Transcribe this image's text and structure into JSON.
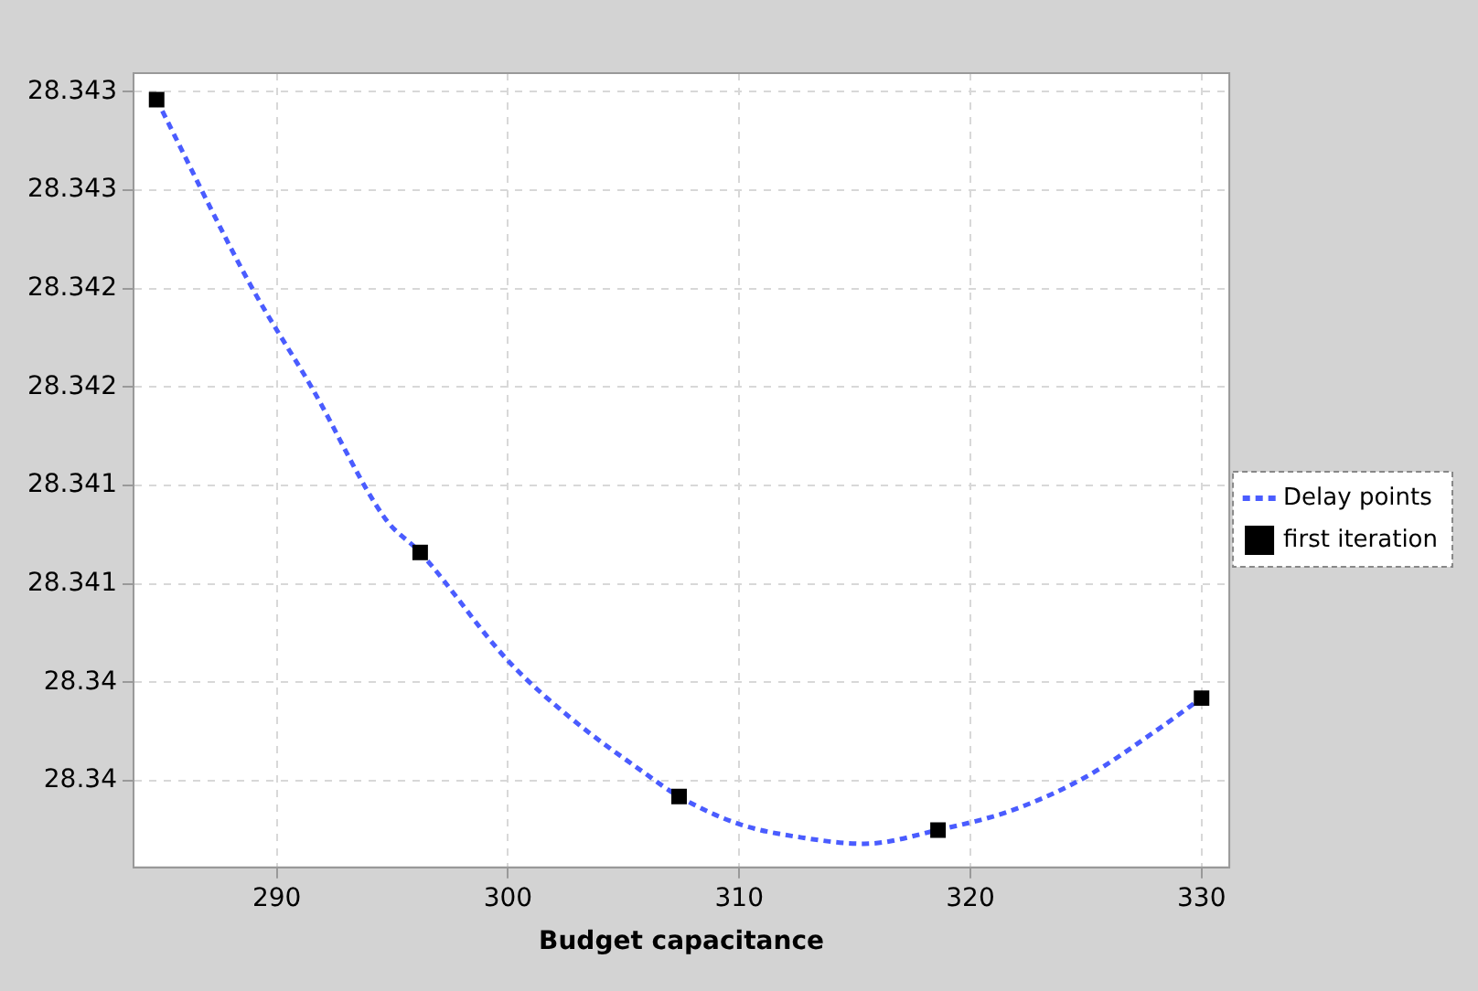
{
  "chart_data": {
    "type": "line",
    "xlabel": "Budget capacitance",
    "xlim": [
      283.8,
      331.2
    ],
    "xticks": [
      290,
      300,
      310,
      320,
      330
    ],
    "ylim": [
      28.33906,
      28.343095
    ],
    "yticks": [
      {
        "value": 28.3395,
        "label": "28.34"
      },
      {
        "value": 28.34,
        "label": "28.34"
      },
      {
        "value": 28.3405,
        "label": "28.341"
      },
      {
        "value": 28.341,
        "label": "28.341"
      },
      {
        "value": 28.3415,
        "label": "28.342"
      },
      {
        "value": 28.342,
        "label": "28.342"
      },
      {
        "value": 28.3425,
        "label": "28.343"
      },
      {
        "value": 28.343,
        "label": "28.343"
      }
    ],
    "grid": true,
    "legend": "right",
    "series": [
      {
        "name": "Delay points",
        "type": "line",
        "color": "#4a5cff",
        "line_style": "dashed",
        "marker": "none",
        "x": [
          284.8,
          288.9,
          291.5,
          294.7,
          296.2,
          300.0,
          302.7,
          305.9,
          307.4,
          310.0,
          312.8,
          315.4,
          318.6,
          321.8,
          325.0,
          328.1,
          330.0
        ],
        "values": [
          28.34296,
          28.34201,
          28.3415,
          28.34083,
          28.34066,
          28.34011,
          28.33982,
          28.33954,
          28.33942,
          28.33928,
          28.33921,
          28.33918,
          28.33925,
          28.33935,
          28.33952,
          28.33976,
          28.33992
        ]
      },
      {
        "name": "first iteration",
        "type": "scatter",
        "color": "#000000",
        "marker": "square",
        "x": [
          284.8,
          296.2,
          307.4,
          318.6,
          330.0
        ],
        "values": [
          28.34296,
          28.34066,
          28.33942,
          28.33925,
          28.33992
        ]
      }
    ]
  }
}
